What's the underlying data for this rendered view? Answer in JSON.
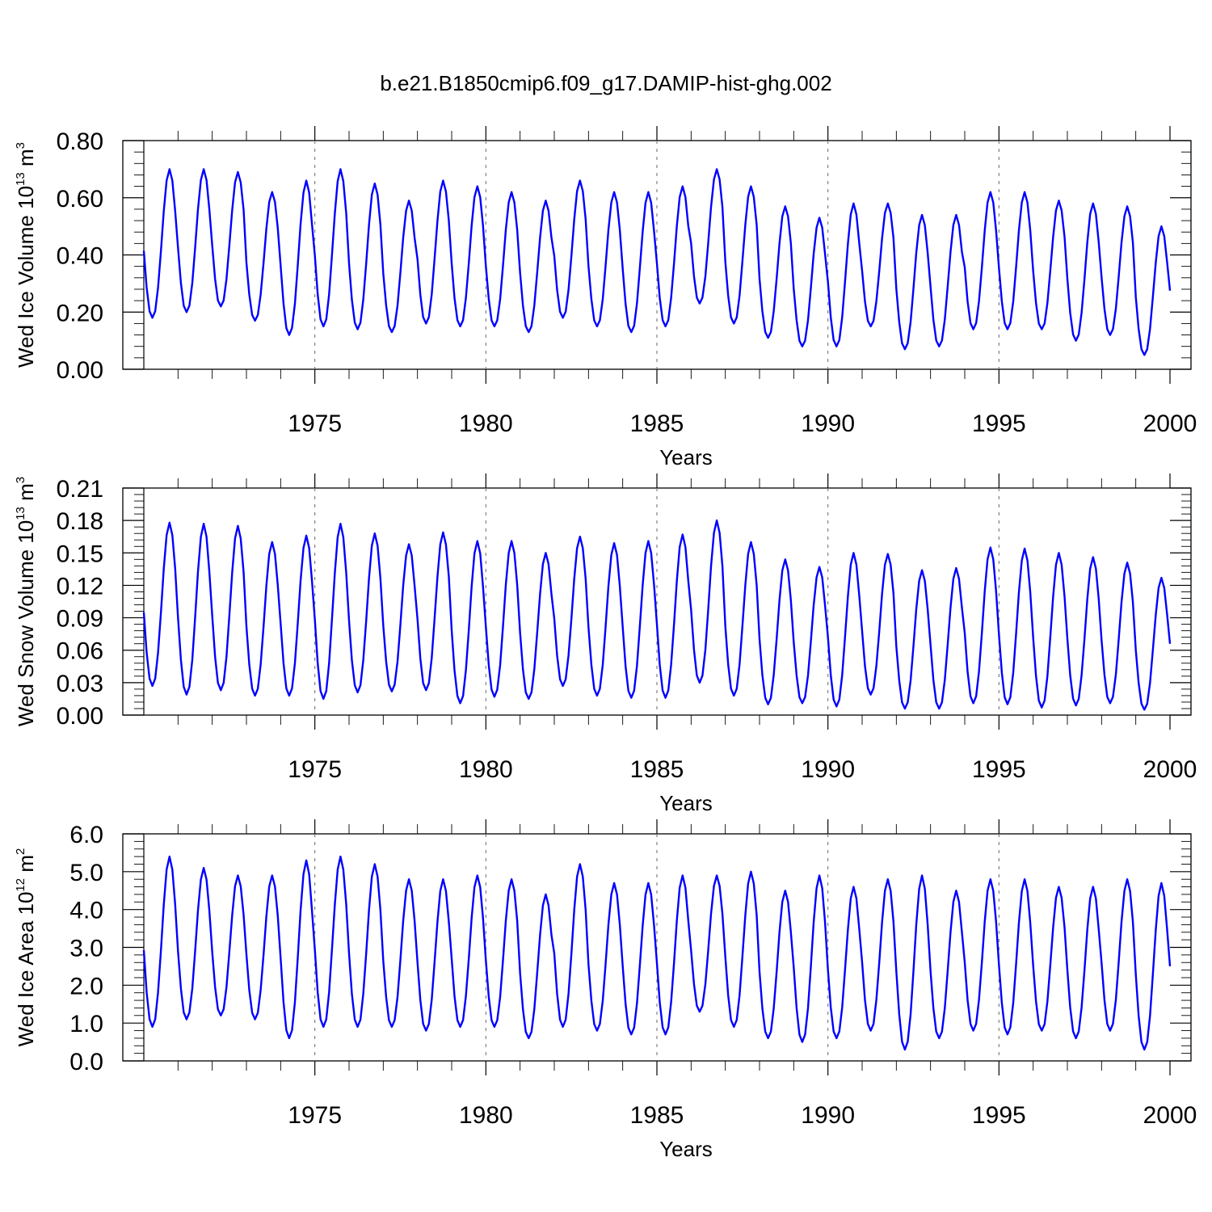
{
  "title": "b.e21.B1850cmip6.f09_g17.DAMIP-hist-ghg.002",
  "colors": {
    "series": "#0000ff",
    "grid": "#777777",
    "axis": "#000000"
  },
  "chart_data": [
    {
      "id": "ice-volume",
      "type": "line",
      "ylabel": {
        "main": "Wed Ice Volume 10",
        "sup": "13",
        "unit": " m",
        "unitsup": "3"
      },
      "xlabel": "Years",
      "xlim": [
        1970,
        2000
      ],
      "ylim": [
        0.0,
        0.8
      ],
      "yticks": [
        0.0,
        0.2,
        0.4,
        0.6,
        0.8
      ],
      "ytick_labels": [
        "0.00",
        "0.20",
        "0.40",
        "0.60",
        "0.80"
      ],
      "xticks": [
        1975,
        1980,
        1985,
        1990,
        1995,
        2000
      ],
      "xtick_labels": [
        "1975",
        "1980",
        "1985",
        "1990",
        "1995",
        "2000"
      ],
      "series": [
        {
          "name": "Wed Ice Volume",
          "annual_max": [
            0.7,
            0.7,
            0.69,
            0.62,
            0.66,
            0.7,
            0.65,
            0.59,
            0.66,
            0.64,
            0.62,
            0.59,
            0.66,
            0.62,
            0.62,
            0.64,
            0.7,
            0.64,
            0.57,
            0.53,
            0.58,
            0.58,
            0.54,
            0.54,
            0.62,
            0.62,
            0.59,
            0.58,
            0.57,
            0.5
          ],
          "annual_min": [
            0.18,
            0.2,
            0.22,
            0.17,
            0.12,
            0.15,
            0.14,
            0.13,
            0.16,
            0.15,
            0.15,
            0.13,
            0.18,
            0.15,
            0.13,
            0.15,
            0.23,
            0.16,
            0.11,
            0.08,
            0.08,
            0.15,
            0.07,
            0.08,
            0.14,
            0.14,
            0.14,
            0.1,
            0.12,
            0.05
          ]
        }
      ]
    },
    {
      "id": "snow-volume",
      "type": "line",
      "ylabel": {
        "main": "Wed Snow Volume 10",
        "sup": "13",
        "unit": " m",
        "unitsup": "3"
      },
      "xlabel": "Years",
      "xlim": [
        1970,
        2000
      ],
      "ylim": [
        0.0,
        0.21
      ],
      "yticks": [
        0.0,
        0.03,
        0.06,
        0.09,
        0.12,
        0.15,
        0.18,
        0.21
      ],
      "ytick_labels": [
        "0.00",
        "0.03",
        "0.06",
        "0.09",
        "0.12",
        "0.15",
        "0.18",
        "0.21"
      ],
      "xticks": [
        1975,
        1980,
        1985,
        1990,
        1995,
        2000
      ],
      "xtick_labels": [
        "1975",
        "1980",
        "1985",
        "1990",
        "1995",
        "2000"
      ],
      "series": [
        {
          "name": "Wed Snow Volume",
          "annual_max": [
            0.178,
            0.177,
            0.175,
            0.16,
            0.166,
            0.177,
            0.168,
            0.158,
            0.169,
            0.161,
            0.161,
            0.15,
            0.165,
            0.159,
            0.161,
            0.167,
            0.18,
            0.16,
            0.144,
            0.137,
            0.15,
            0.149,
            0.134,
            0.136,
            0.155,
            0.154,
            0.15,
            0.146,
            0.141,
            0.127
          ],
          "annual_min": [
            0.027,
            0.019,
            0.023,
            0.018,
            0.018,
            0.015,
            0.021,
            0.022,
            0.023,
            0.011,
            0.017,
            0.015,
            0.027,
            0.018,
            0.016,
            0.016,
            0.03,
            0.018,
            0.01,
            0.011,
            0.008,
            0.019,
            0.006,
            0.006,
            0.011,
            0.01,
            0.007,
            0.009,
            0.011,
            0.005
          ]
        }
      ]
    },
    {
      "id": "ice-area",
      "type": "line",
      "ylabel": {
        "main": "Wed Ice Area 10",
        "sup": "12",
        "unit": " m",
        "unitsup": "2"
      },
      "xlabel": "Years",
      "xlim": [
        1970,
        2000
      ],
      "ylim": [
        0.0,
        6.0
      ],
      "yticks": [
        0.0,
        1.0,
        2.0,
        3.0,
        4.0,
        5.0,
        6.0
      ],
      "ytick_labels": [
        "0.0",
        "1.0",
        "2.0",
        "3.0",
        "4.0",
        "5.0",
        "6.0"
      ],
      "xticks": [
        1975,
        1980,
        1985,
        1990,
        1995,
        2000
      ],
      "xtick_labels": [
        "1975",
        "1980",
        "1985",
        "1990",
        "1995",
        "2000"
      ],
      "series": [
        {
          "name": "Wed Ice Area",
          "annual_max": [
            5.4,
            5.1,
            4.9,
            4.9,
            5.3,
            5.4,
            5.2,
            4.8,
            4.8,
            4.9,
            4.8,
            4.4,
            5.2,
            4.7,
            4.7,
            4.9,
            4.9,
            5.0,
            4.5,
            4.9,
            4.6,
            4.8,
            4.9,
            4.5,
            4.8,
            4.8,
            4.6,
            4.6,
            4.8,
            4.7
          ],
          "annual_min": [
            0.9,
            1.1,
            1.2,
            1.1,
            0.6,
            0.9,
            0.9,
            0.9,
            0.8,
            0.9,
            0.9,
            0.6,
            0.9,
            0.8,
            0.7,
            0.7,
            1.3,
            0.9,
            0.6,
            0.5,
            0.6,
            0.8,
            0.3,
            0.6,
            0.8,
            0.7,
            0.8,
            0.6,
            0.8,
            0.3
          ]
        }
      ]
    }
  ]
}
